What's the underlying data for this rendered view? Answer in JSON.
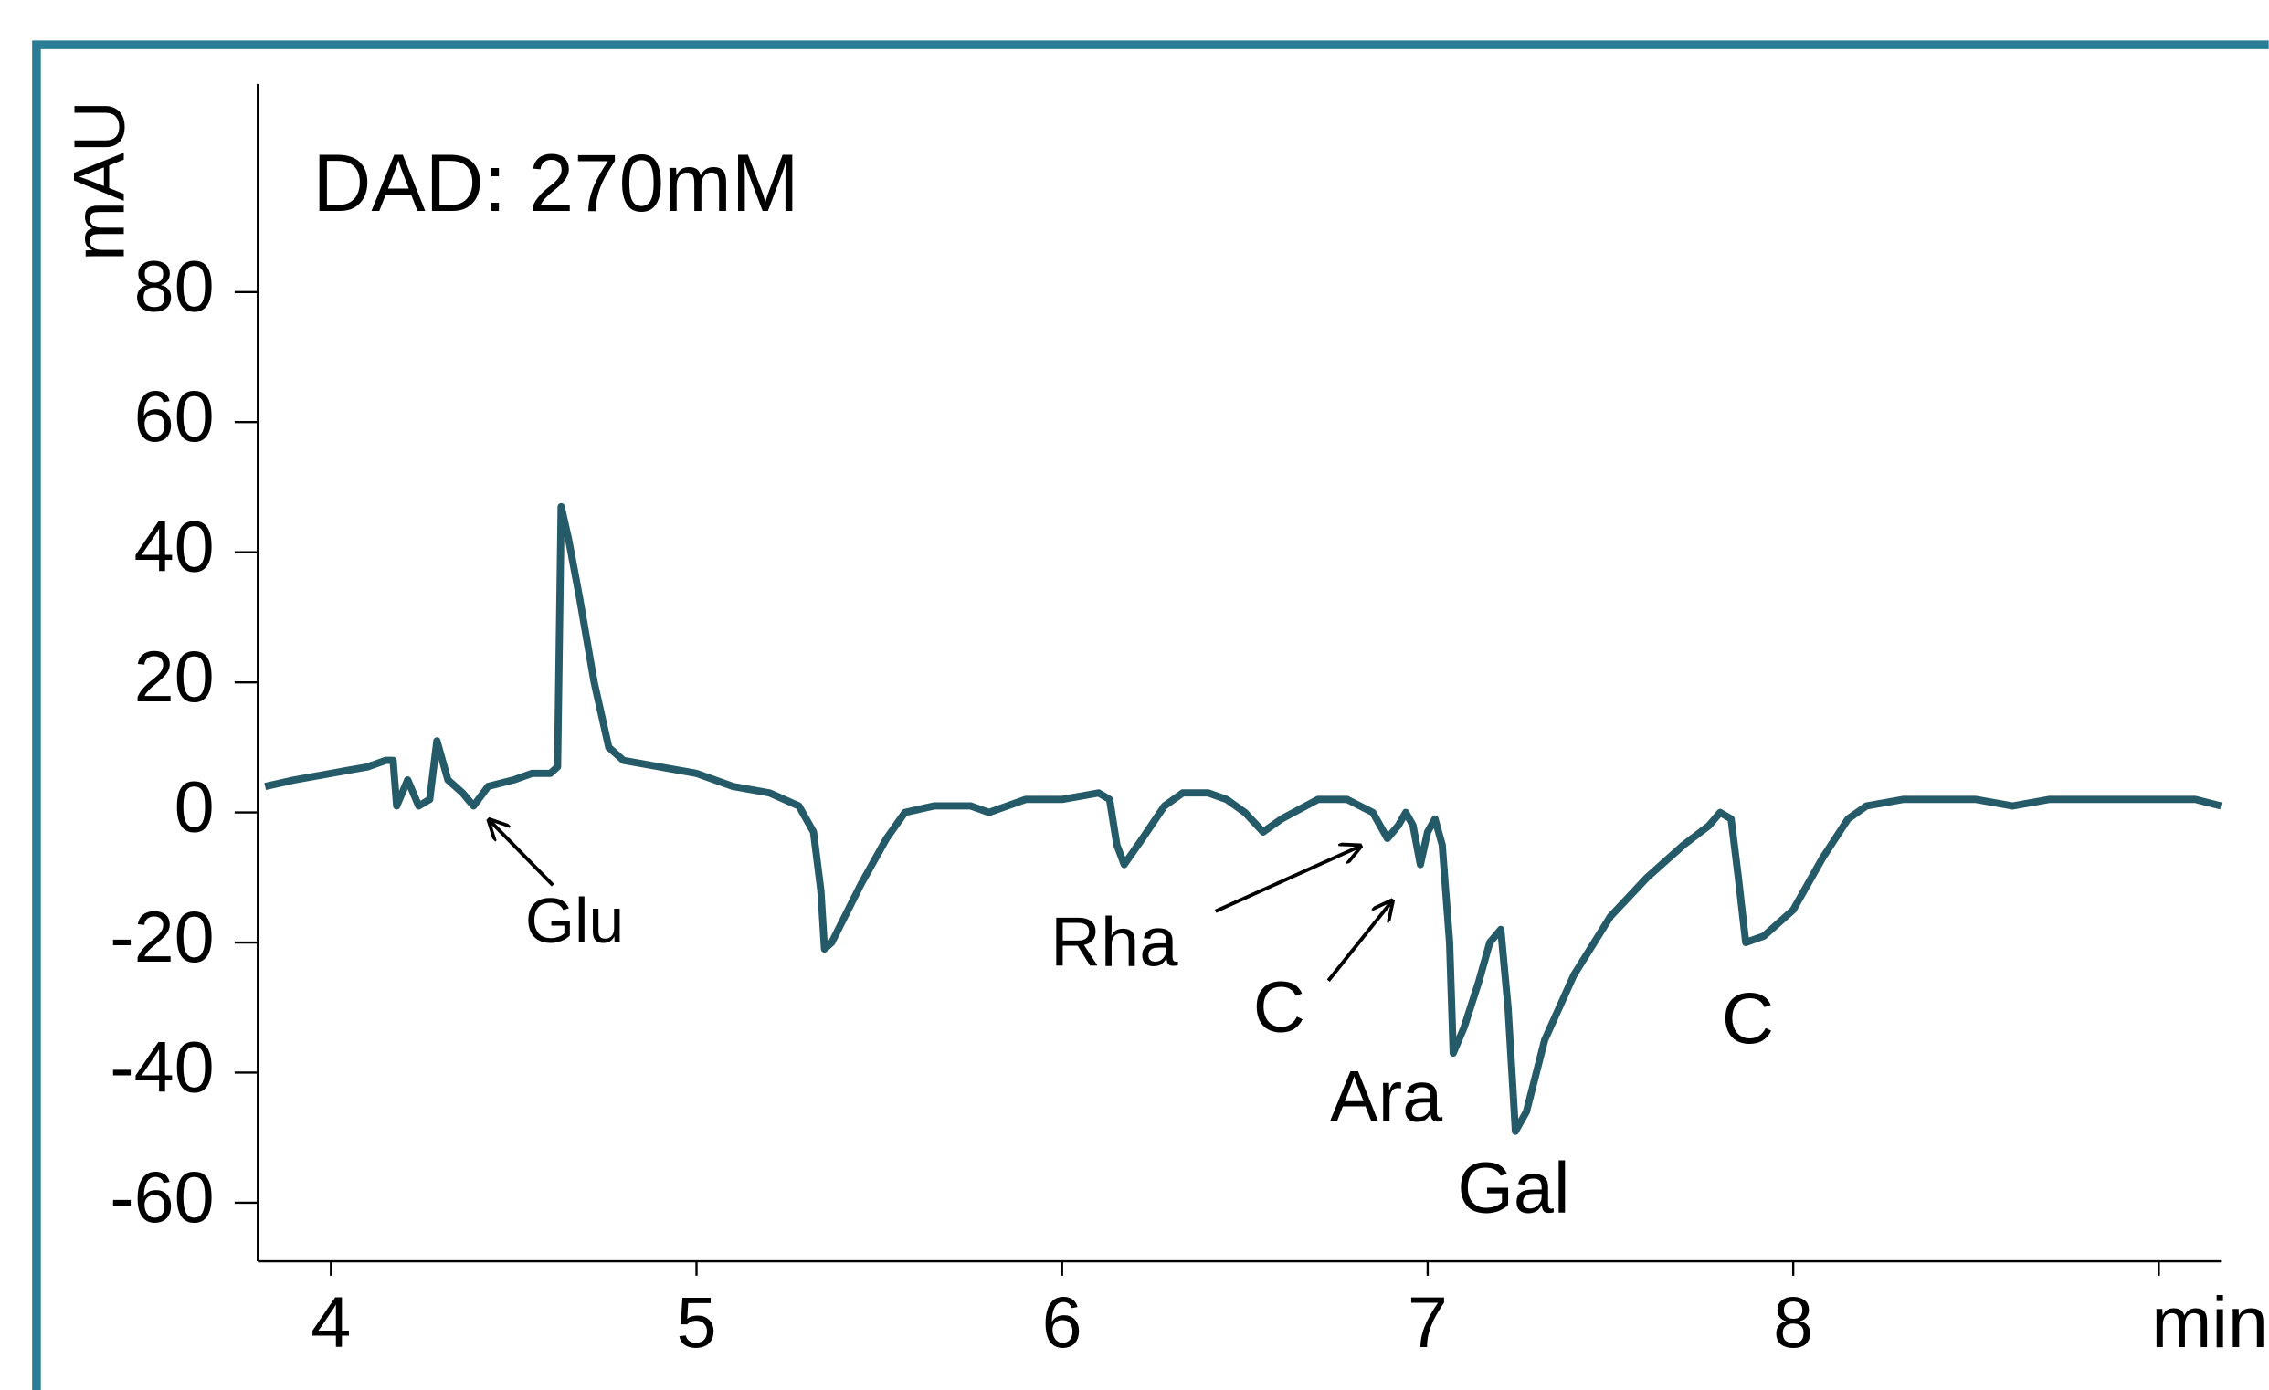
{
  "chart_data": {
    "type": "line",
    "title": "DAD: 270mM",
    "x_label": "min",
    "y_label": "mAU",
    "xlim": [
      3.8,
      9.17
    ],
    "ylim": [
      -69,
      112
    ],
    "xticks": [
      4,
      5,
      6,
      7,
      8,
      9
    ],
    "yticks": [
      -60,
      -40,
      -20,
      0,
      20,
      40,
      60,
      80
    ],
    "annotations": [
      "Glu",
      "Rha",
      "C",
      "Ara",
      "Gal",
      "C"
    ],
    "series": [
      {
        "color": "#255a69",
        "x": [
          3.82,
          3.9,
          4.0,
          4.1,
          4.15,
          4.17,
          4.18,
          4.21,
          4.24,
          4.27,
          4.29,
          4.32,
          4.36,
          4.39,
          4.43,
          4.5,
          4.55,
          4.6,
          4.62,
          4.63,
          4.65,
          4.68,
          4.72,
          4.76,
          4.8,
          4.9,
          5.0,
          5.1,
          5.2,
          5.28,
          5.32,
          5.34,
          5.35,
          5.37,
          5.45,
          5.52,
          5.57,
          5.65,
          5.75,
          5.8,
          5.9,
          6.0,
          6.1,
          6.13,
          6.15,
          6.17,
          6.22,
          6.28,
          6.33,
          6.4,
          6.45,
          6.5,
          6.55,
          6.6,
          6.7,
          6.78,
          6.85,
          6.89,
          6.92,
          6.94,
          6.96,
          6.98,
          7.0,
          7.02,
          7.04,
          7.06,
          7.07,
          7.1,
          7.14,
          7.17,
          7.2,
          7.22,
          7.24,
          7.27,
          7.32,
          7.4,
          7.5,
          7.6,
          7.7,
          7.77,
          7.8,
          7.83,
          7.85,
          7.87,
          7.92,
          8.0,
          8.08,
          8.15,
          8.2,
          8.3,
          8.4,
          8.5,
          8.6,
          8.7,
          8.8,
          8.9,
          9.0,
          9.1,
          9.17
        ],
        "values": [
          4,
          5,
          6,
          7,
          8,
          8,
          1,
          5,
          1,
          2,
          11,
          5,
          3,
          1,
          4,
          5,
          6,
          6,
          7,
          47,
          42,
          33,
          20,
          10,
          8,
          7,
          6,
          4,
          3,
          1,
          -3,
          -12,
          -21,
          -20,
          -11,
          -4,
          0,
          1,
          1,
          0,
          2,
          2,
          3,
          2,
          -5,
          -8,
          -4,
          1,
          3,
          3,
          2,
          0,
          -3,
          -1,
          2,
          2,
          0,
          -4,
          -2,
          0,
          -2,
          -8,
          -3,
          -1,
          -5,
          -20,
          -37,
          -33,
          -26,
          -20,
          -18,
          -30,
          -49,
          -46,
          -35,
          -25,
          -16,
          -10,
          -5,
          -2,
          0,
          -1,
          -10,
          -20,
          -19,
          -15,
          -7,
          -1,
          1,
          2,
          2,
          2,
          1,
          2,
          2,
          2,
          2,
          2,
          1
        ]
      }
    ]
  }
}
